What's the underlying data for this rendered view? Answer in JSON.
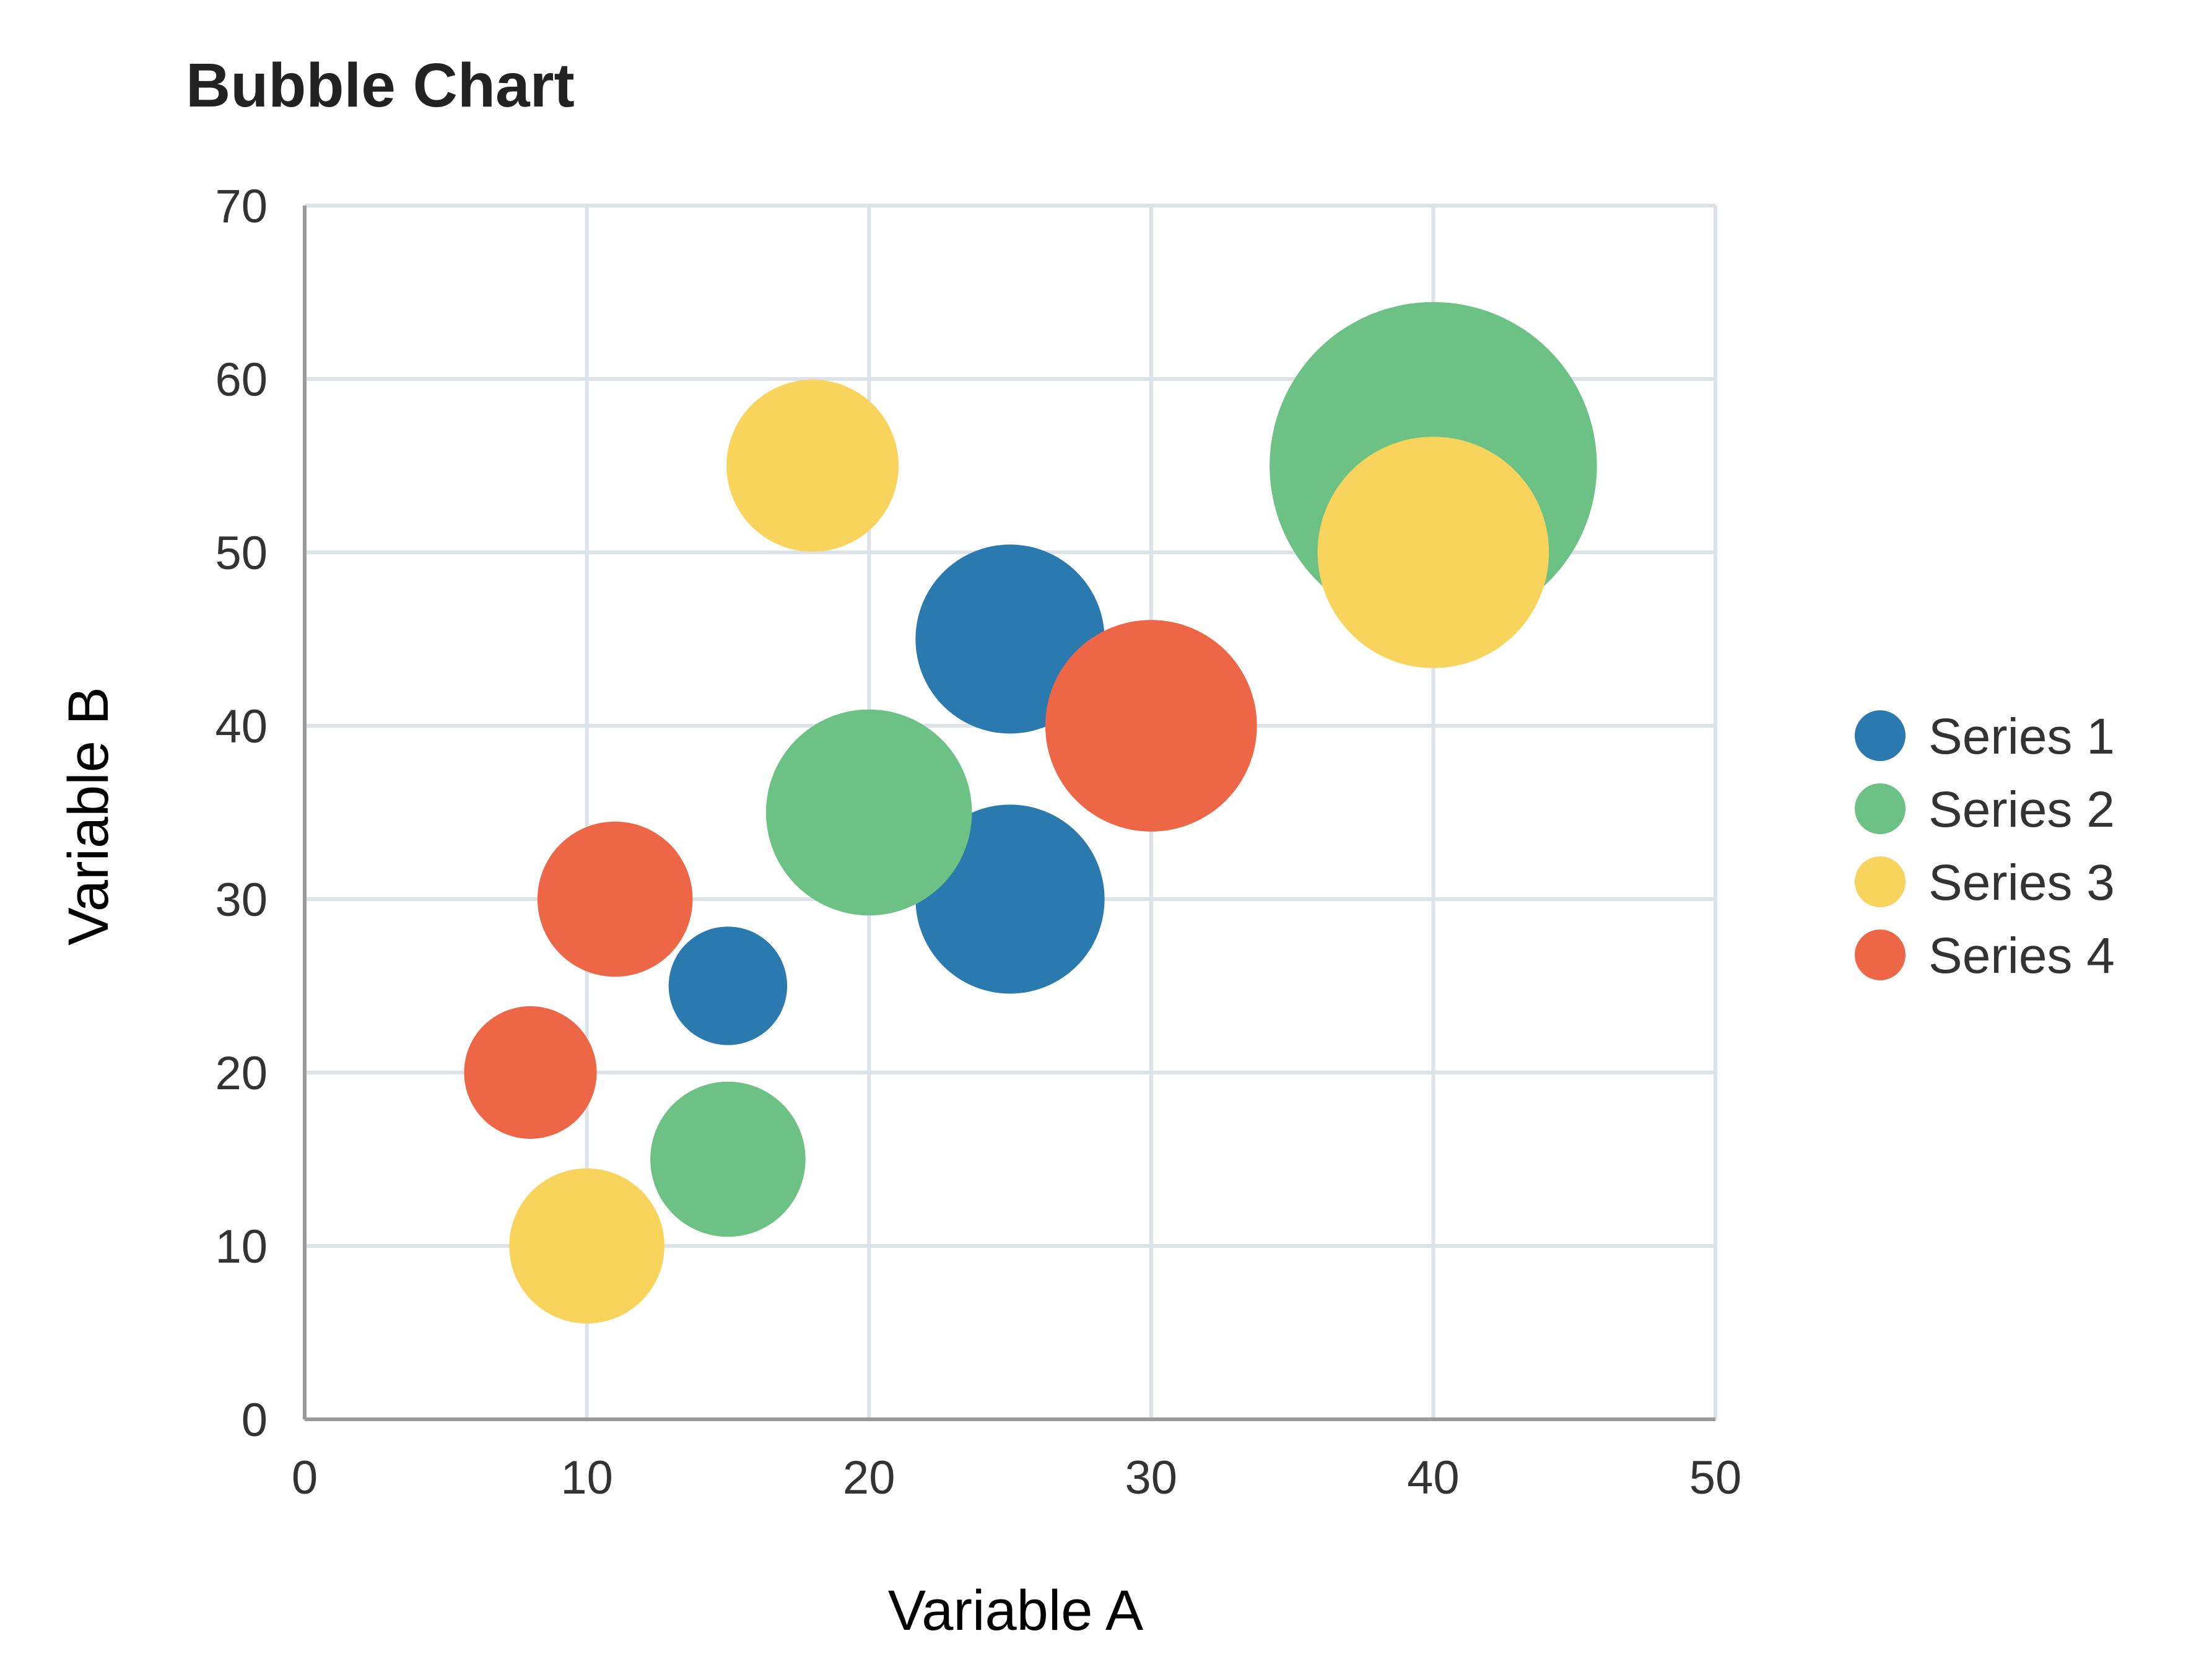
{
  "chart_data": {
    "type": "scatter",
    "subtype": "bubble",
    "title": "Bubble Chart",
    "xlabel": "Variable A",
    "ylabel": "Variable B",
    "xlim": [
      0,
      50
    ],
    "ylim": [
      0,
      70
    ],
    "xticks": [
      0,
      10,
      20,
      30,
      40,
      50
    ],
    "yticks": [
      0,
      10,
      20,
      30,
      40,
      50,
      60,
      70
    ],
    "grid": true,
    "legend_position": "right",
    "bubble_size_unit": "diameter in x-axis units",
    "series": [
      {
        "name": "Series 1",
        "color": "#2a7ab0",
        "points": [
          {
            "x": 15,
            "y": 25,
            "size": 4.2
          },
          {
            "x": 25,
            "y": 30,
            "size": 6.7
          },
          {
            "x": 25,
            "y": 45,
            "size": 6.7
          }
        ]
      },
      {
        "name": "Series 2",
        "color": "#6cc184",
        "points": [
          {
            "x": 15,
            "y": 15,
            "size": 5.5
          },
          {
            "x": 20,
            "y": 35,
            "size": 7.3
          },
          {
            "x": 40,
            "y": 55,
            "size": 11.6
          }
        ]
      },
      {
        "name": "Series 3",
        "color": "#f9d45c",
        "points": [
          {
            "x": 10,
            "y": 10,
            "size": 5.5
          },
          {
            "x": 18,
            "y": 55,
            "size": 6.1
          },
          {
            "x": 40,
            "y": 50,
            "size": 8.2
          }
        ]
      },
      {
        "name": "Series 4",
        "color": "#ed6747",
        "points": [
          {
            "x": 8,
            "y": 20,
            "size": 4.7
          },
          {
            "x": 11,
            "y": 30,
            "size": 5.5
          },
          {
            "x": 30,
            "y": 40,
            "size": 7.5
          }
        ]
      }
    ]
  }
}
